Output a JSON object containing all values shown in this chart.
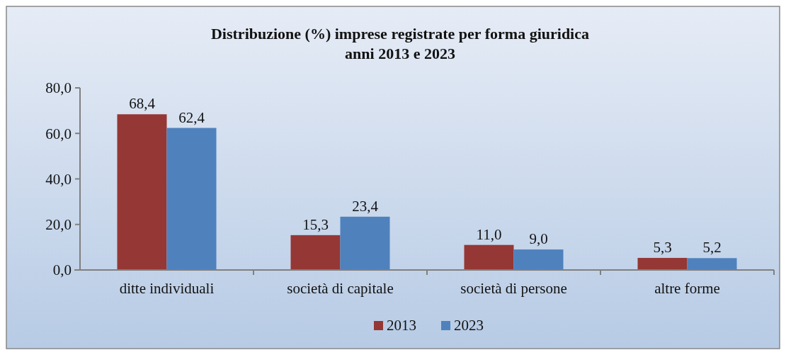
{
  "chart_data": {
    "type": "bar",
    "title": "Distribuzione (%) imprese registrate per forma giuridica\nanni 2013 e 2023",
    "categories": [
      "ditte individuali",
      "società di capitale",
      "società di persone",
      "altre forme"
    ],
    "series": [
      {
        "name": "2013",
        "color": "#953735",
        "values": [
          68.4,
          15.3,
          11.0,
          5.3
        ],
        "value_labels": [
          "68,4",
          "15,3",
          "11,0",
          "5,3"
        ]
      },
      {
        "name": "2023",
        "color": "#4f81bd",
        "values": [
          62.4,
          23.4,
          9.0,
          5.2
        ],
        "value_labels": [
          "62,4",
          "23,4",
          "9,0",
          "5,2"
        ]
      }
    ],
    "ylim": [
      0,
      80
    ],
    "yticks": [
      {
        "value": 0,
        "label": "0,0"
      },
      {
        "value": 20,
        "label": "20,0"
      },
      {
        "value": 40,
        "label": "40,0"
      },
      {
        "value": 60,
        "label": "60,0"
      },
      {
        "value": 80,
        "label": "80,0"
      }
    ],
    "legend": "bottom"
  }
}
